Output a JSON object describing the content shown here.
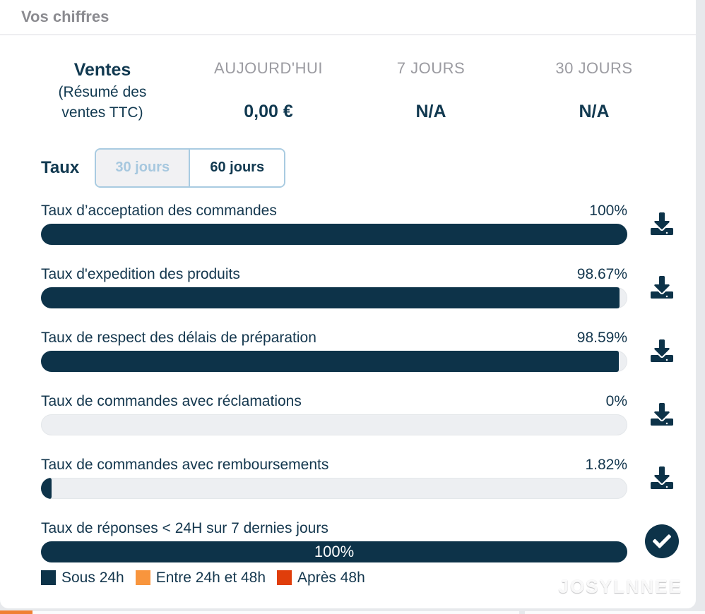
{
  "page": {
    "title": "Vos chiffres"
  },
  "summary": {
    "title": "Ventes",
    "subtitle": "(Résumé des ventes TTC)",
    "columns": [
      {
        "label": "AUJOURD'HUI",
        "value": "0,00 €"
      },
      {
        "label": "7 JOURS",
        "value": "N/A"
      },
      {
        "label": "30 JOURS",
        "value": "N/A"
      }
    ]
  },
  "taux": {
    "label": "Taux",
    "options": [
      {
        "label": "30 jours",
        "selected": false
      },
      {
        "label": "60 jours",
        "selected": true
      }
    ]
  },
  "rates": [
    {
      "label": "Taux d’acceptation des commandes",
      "value": "100%",
      "percent": 100
    },
    {
      "label": "Taux d'expedition des produits",
      "value": "98.67%",
      "percent": 98.67
    },
    {
      "label": "Taux de respect des délais de préparation",
      "value": "98.59%",
      "percent": 98.59
    },
    {
      "label": "Taux de commandes avec réclamations",
      "value": "0%",
      "percent": 0
    },
    {
      "label": "Taux de commandes avec remboursements",
      "value": "1.82%",
      "percent": 1.82
    },
    {
      "label": "Taux de réponses < 24H sur 7 dernies jours",
      "value": "100%",
      "percent": 100
    }
  ],
  "legend": {
    "items": [
      {
        "label": "Sous 24h",
        "color": "#0d3349"
      },
      {
        "label": "Entre 24h et 48h",
        "color": "#f8953d"
      },
      {
        "label": "Après 48h",
        "color": "#e03e0b"
      }
    ]
  },
  "watermark": {
    "text": "JOSYLNNEE"
  },
  "colors": {
    "navy": "#0d3349",
    "track": "#edeff2",
    "toggle_border": "#a9cbe1"
  }
}
